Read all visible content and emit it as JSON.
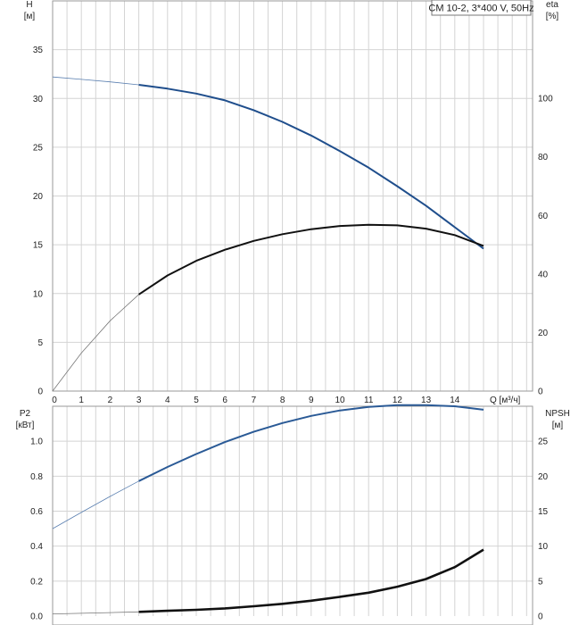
{
  "chart_data": [
    {
      "type": "line",
      "panel": "top",
      "title": "CM 10-2, 3*400 V, 50Hz",
      "ylabel": "H",
      "yunit": "[м]",
      "y2label": "eta",
      "y2unit": "[%]",
      "xlabel": "Q [м³/ч]",
      "xlim": [
        0,
        16
      ],
      "ylim": [
        0,
        40
      ],
      "y2lim": [
        0,
        133.3
      ],
      "xticks": [
        "0",
        "1",
        "2",
        "3",
        "4",
        "5",
        "6",
        "7",
        "8",
        "9",
        "10",
        "11",
        "12",
        "13",
        "14"
      ],
      "yticks": [
        "0",
        "5",
        "10",
        "15",
        "20",
        "25",
        "30",
        "35"
      ],
      "y2ticks": [
        "0",
        "20",
        "40",
        "60",
        "80",
        "100"
      ],
      "grid": true,
      "series": [
        {
          "axis": "left",
          "color": "#1f4e8c",
          "x": [
            0,
            1,
            2,
            3,
            4,
            5,
            6,
            7,
            8,
            9,
            10,
            11,
            12,
            13,
            14,
            15
          ],
          "y": [
            32.2,
            31.95,
            31.7,
            31.4,
            31.0,
            30.5,
            29.8,
            28.8,
            27.6,
            26.2,
            24.6,
            22.9,
            21.0,
            19.0,
            16.8,
            14.6
          ],
          "thick_from": 3
        },
        {
          "axis": "right",
          "color": "#111111",
          "x": [
            0,
            1,
            2,
            3,
            4,
            5,
            6,
            7,
            8,
            9,
            10,
            11,
            12,
            13,
            14,
            15
          ],
          "y": [
            0,
            13,
            24,
            33,
            39.5,
            44.5,
            48.3,
            51.3,
            53.6,
            55.3,
            56.4,
            56.8,
            56.6,
            55.5,
            53.3,
            49.6
          ],
          "thick_from": 3
        }
      ]
    },
    {
      "type": "line",
      "panel": "bottom",
      "ylabel": "P2",
      "yunit": "[кВт]",
      "y2label": "NPSH",
      "y2unit": "[м]",
      "xlim": [
        0,
        16
      ],
      "ylim": [
        0,
        1.2
      ],
      "y2lim": [
        0,
        30
      ],
      "yticks": [
        "0.0",
        "0.2",
        "0.4",
        "0.6",
        "0.8",
        "1.0"
      ],
      "y2ticks": [
        "0",
        "5",
        "10",
        "15",
        "20",
        "25"
      ],
      "grid": true,
      "series": [
        {
          "axis": "left",
          "color": "#2a5a96",
          "x": [
            0,
            1,
            2,
            3,
            4,
            5,
            6,
            7,
            8,
            9,
            10,
            11,
            12,
            13,
            14,
            15
          ],
          "y": [
            0.5,
            0.593,
            0.684,
            0.772,
            0.853,
            0.927,
            0.995,
            1.054,
            1.104,
            1.145,
            1.176,
            1.196,
            1.206,
            1.206,
            1.2,
            1.18
          ],
          "thick_from": 3
        },
        {
          "axis": "right",
          "color": "#111111",
          "x": [
            0,
            1,
            2,
            3,
            4,
            5,
            6,
            7,
            8,
            9,
            10,
            11,
            12,
            13,
            14,
            15
          ],
          "y": [
            0.3,
            0.4,
            0.5,
            0.6,
            0.75,
            0.9,
            1.1,
            1.4,
            1.75,
            2.2,
            2.75,
            3.35,
            4.2,
            5.3,
            7.0,
            9.5
          ],
          "thick_from": 3
        }
      ]
    }
  ]
}
